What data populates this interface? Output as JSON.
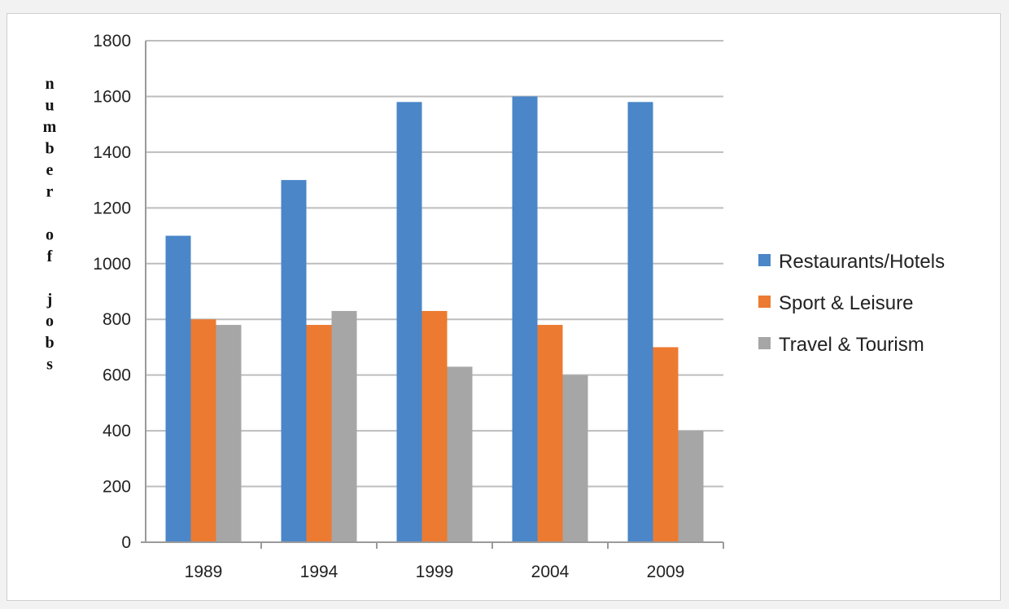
{
  "chart_data": {
    "type": "bar",
    "title": "",
    "xlabel": "",
    "ylabel": "number of jobs",
    "ylim": [
      0,
      1800
    ],
    "yticks": [
      0,
      200,
      400,
      600,
      800,
      1000,
      1200,
      1400,
      1600,
      1800
    ],
    "ytick_labels": [
      "0",
      "200",
      "400",
      "600",
      "800",
      "1000",
      "1200",
      "1400",
      "1600",
      "1800"
    ],
    "grid": true,
    "legend_position": "right",
    "categories": [
      "1989",
      "1994",
      "1999",
      "2004",
      "2009"
    ],
    "series": [
      {
        "name": "Restaurants/Hotels",
        "color": "#4a86c8",
        "values": [
          1100,
          1300,
          1580,
          1600,
          1580
        ]
      },
      {
        "name": "Sport & Leisure",
        "color": "#ec7a31",
        "values": [
          800,
          780,
          830,
          780,
          700
        ]
      },
      {
        "name": "Travel & Tourism",
        "color": "#a6a6a6",
        "values": [
          780,
          830,
          630,
          600,
          400
        ]
      }
    ]
  }
}
